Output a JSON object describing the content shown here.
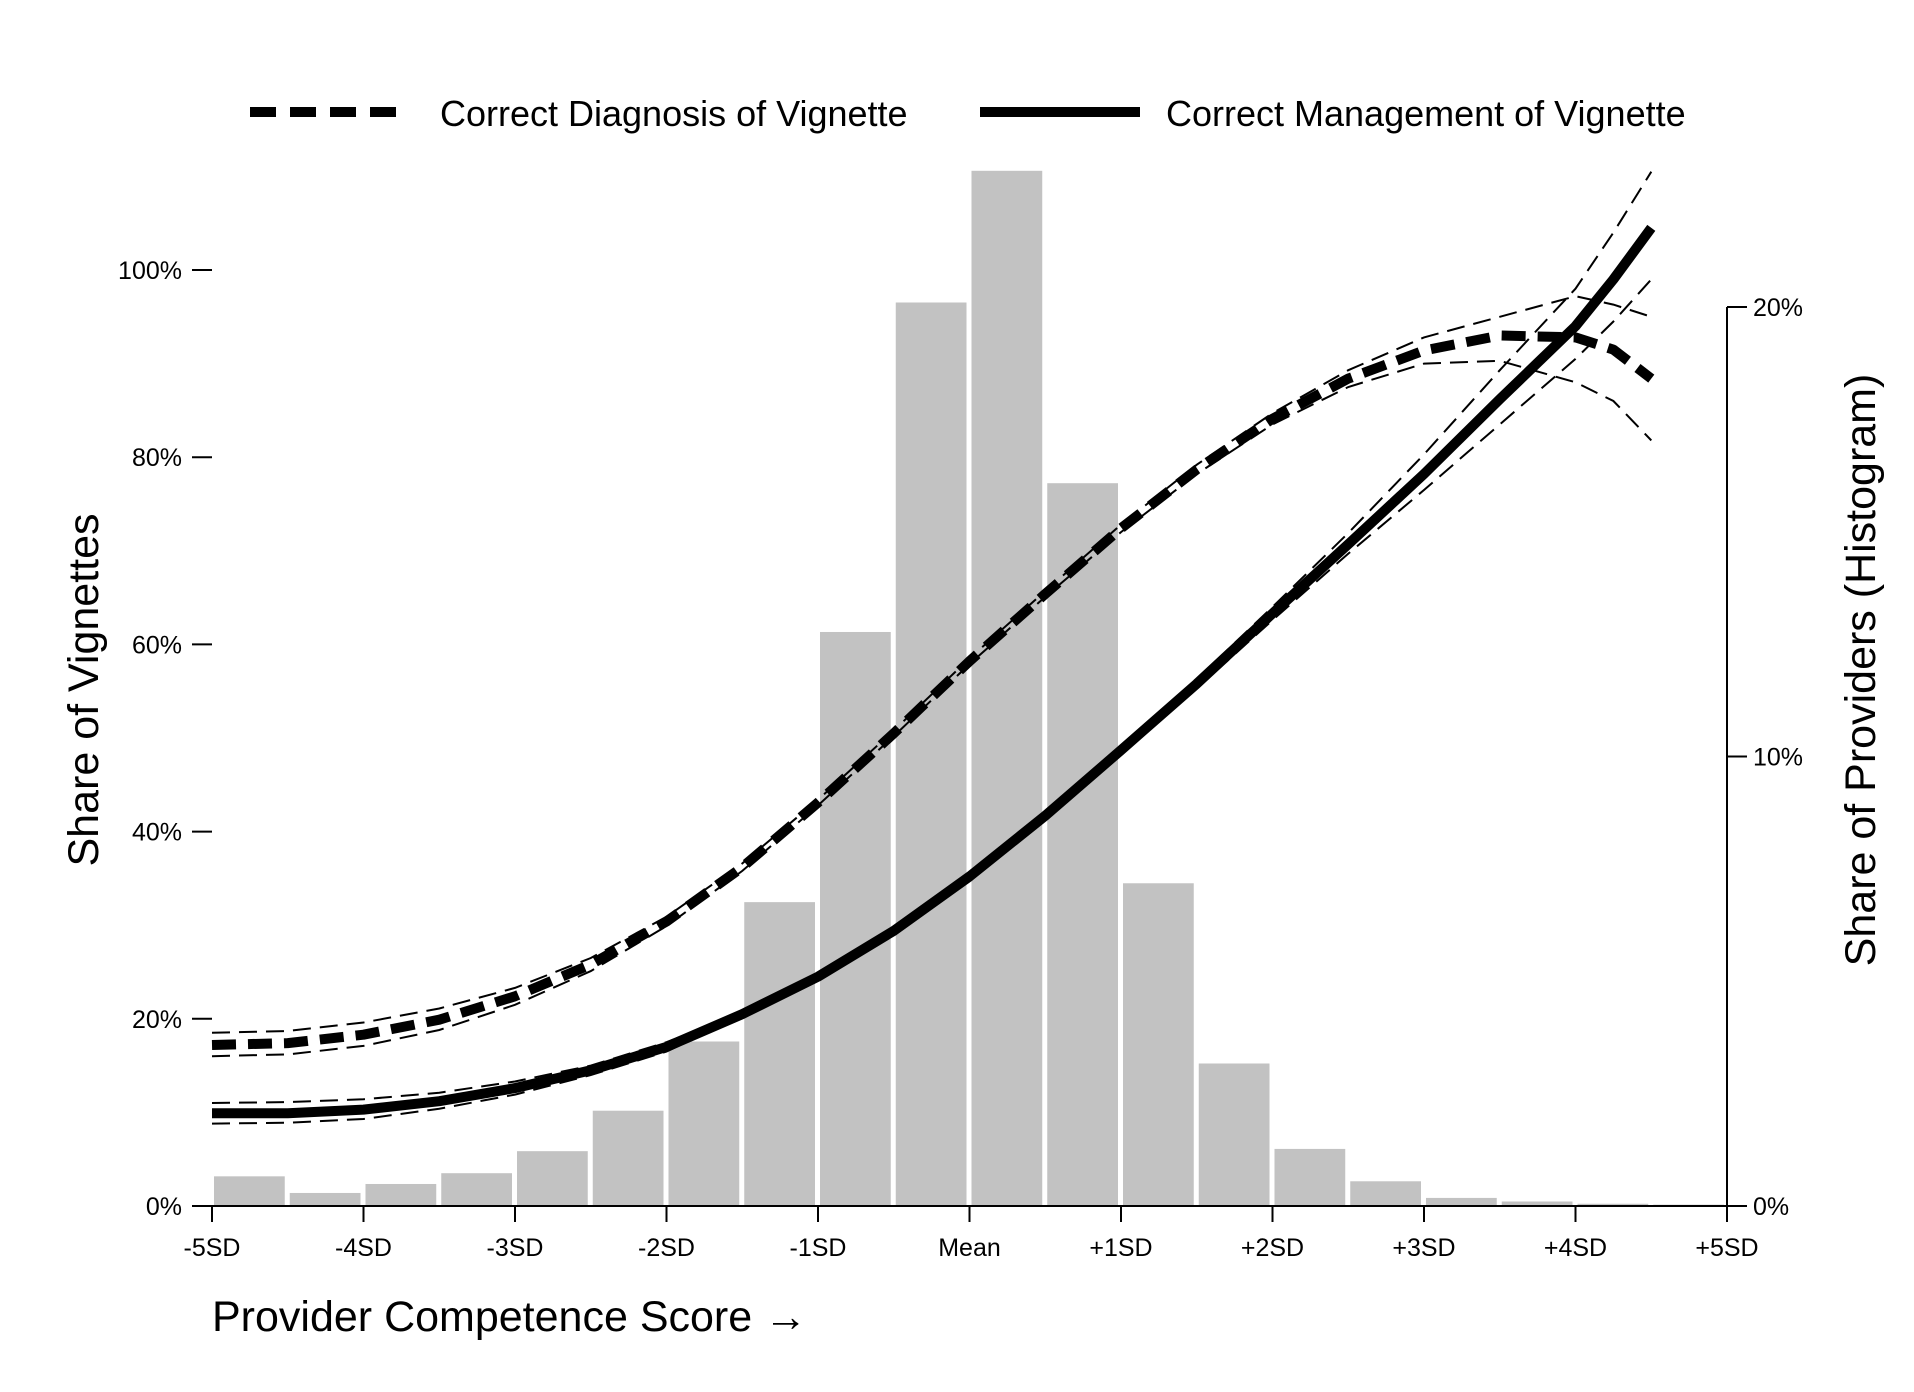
{
  "chart_data": {
    "type": "bar",
    "legend": {
      "position": "top",
      "items": [
        {
          "label": "Correct Diagnosis of Vignette",
          "style": "dashed"
        },
        {
          "label": "Correct Management of Vignette",
          "style": "solid"
        }
      ]
    },
    "xlabel": "Provider Competence Score →",
    "ylabel": "Share of Vignettes",
    "y2label": "Share of Providers (Histogram)",
    "x_ticks": [
      "-5SD",
      "-4SD",
      "-3SD",
      "-2SD",
      "-1SD",
      "Mean",
      "+1SD",
      "+2SD",
      "+3SD",
      "+4SD",
      "+5SD"
    ],
    "y_ticks": [
      "0%",
      "20%",
      "40%",
      "60%",
      "80%",
      "100%"
    ],
    "y2_ticks": [
      "0%",
      "10%",
      "20%"
    ],
    "xlim": [
      -5,
      5
    ],
    "ylim": [
      0,
      1.1
    ],
    "y2lim": [
      0,
      0.23
    ],
    "grid": false,
    "histogram": {
      "bin_width": 0.5,
      "bin_starts": [
        -5,
        -4.5,
        -4,
        -3.5,
        -3,
        -2.5,
        -2,
        -1.5,
        -1,
        -0.5,
        0,
        0.5,
        1,
        1.5,
        2,
        2.5,
        3,
        3.5,
        4,
        4.5
      ],
      "values": [
        0.0066,
        0.0029,
        0.0049,
        0.0073,
        0.0122,
        0.0212,
        0.0366,
        0.0676,
        0.1277,
        0.201,
        0.2303,
        0.1608,
        0.0718,
        0.0317,
        0.0127,
        0.0055,
        0.0018,
        0.001,
        0.0005,
        0.0003
      ]
    },
    "series": [
      {
        "name": "Correct Diagnosis of Vignette",
        "style": "dashed",
        "x": [
          -5,
          -4.5,
          -4,
          -3.5,
          -3,
          -2.5,
          -2,
          -1.5,
          -1,
          -0.5,
          0,
          0.5,
          1,
          1.5,
          2,
          2.5,
          3,
          3.5,
          4,
          4.25,
          4.5
        ],
        "y": [
          0.172,
          0.174,
          0.183,
          0.199,
          0.224,
          0.258,
          0.304,
          0.362,
          0.431,
          0.505,
          0.582,
          0.654,
          0.724,
          0.787,
          0.841,
          0.884,
          0.914,
          0.93,
          0.928,
          0.915,
          0.884
        ],
        "upper": [
          0.185,
          0.187,
          0.196,
          0.211,
          0.233,
          0.265,
          0.309,
          0.366,
          0.434,
          0.508,
          0.585,
          0.657,
          0.728,
          0.792,
          0.847,
          0.893,
          0.928,
          0.95,
          0.972,
          0.963,
          0.95
        ],
        "lower": [
          0.16,
          0.162,
          0.171,
          0.188,
          0.215,
          0.251,
          0.299,
          0.358,
          0.428,
          0.502,
          0.579,
          0.651,
          0.72,
          0.782,
          0.835,
          0.875,
          0.9,
          0.903,
          0.88,
          0.86,
          0.818
        ]
      },
      {
        "name": "Correct Management of Vignette",
        "style": "solid",
        "x": [
          -5,
          -4.5,
          -4,
          -3.5,
          -3,
          -2.5,
          -2,
          -1.5,
          -1,
          -0.5,
          0,
          0.5,
          1,
          1.5,
          2,
          2.5,
          3,
          3.5,
          4,
          4.25,
          4.5
        ],
        "y": [
          0.099,
          0.099,
          0.103,
          0.112,
          0.126,
          0.145,
          0.17,
          0.205,
          0.245,
          0.294,
          0.352,
          0.417,
          0.487,
          0.558,
          0.633,
          0.707,
          0.782,
          0.862,
          0.94,
          0.99,
          1.045
        ],
        "upper": [
          0.11,
          0.111,
          0.114,
          0.121,
          0.133,
          0.15,
          0.175,
          0.207,
          0.247,
          0.296,
          0.354,
          0.419,
          0.49,
          0.563,
          0.64,
          0.719,
          0.803,
          0.893,
          0.98,
          1.04,
          1.105
        ],
        "lower": [
          0.088,
          0.089,
          0.093,
          0.104,
          0.119,
          0.14,
          0.165,
          0.203,
          0.243,
          0.292,
          0.35,
          0.415,
          0.484,
          0.553,
          0.626,
          0.697,
          0.765,
          0.835,
          0.905,
          0.945,
          0.99
        ]
      }
    ]
  }
}
